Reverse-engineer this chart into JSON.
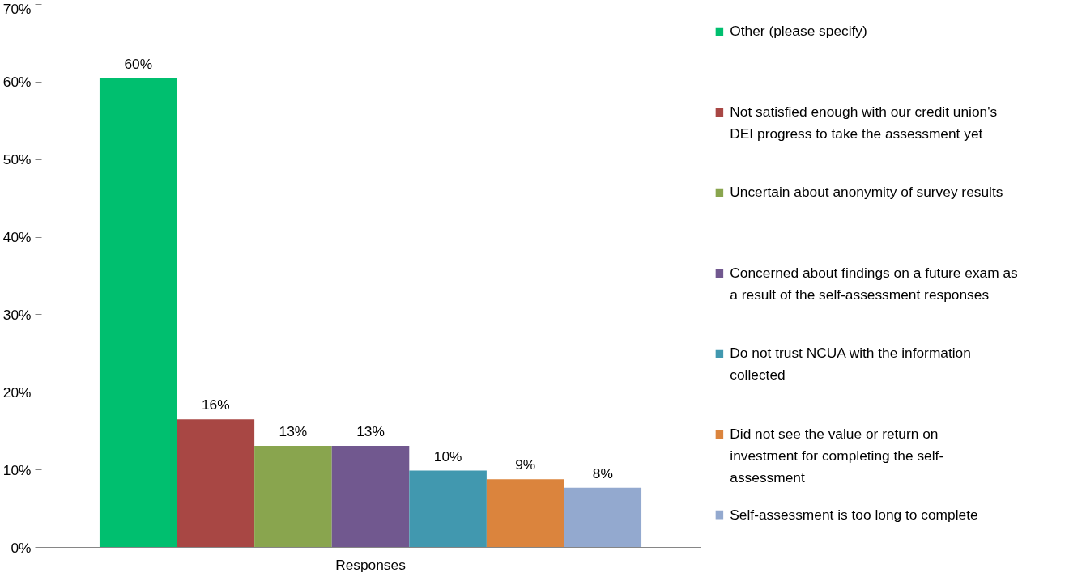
{
  "chart_data": {
    "type": "bar",
    "categories": [
      "Responses"
    ],
    "series": [
      {
        "name": "Other (please specify)",
        "color": "#00bf6f",
        "values": [
          60.5
        ],
        "value_labels": [
          "60%"
        ]
      },
      {
        "name": "Not satisfied enough with our credit union's DEI progress to take the assessment yet",
        "color": "#a84744",
        "values": [
          16.5
        ],
        "value_labels": [
          "16%"
        ]
      },
      {
        "name": "Uncertain about anonymity of survey results",
        "color": "#89a54e",
        "values": [
          13.1
        ],
        "value_labels": [
          "13%"
        ]
      },
      {
        "name": "Concerned about findings on a future exam as a result of the self-assessment responses",
        "color": "#71588f",
        "values": [
          13.1
        ],
        "value_labels": [
          "13%"
        ]
      },
      {
        "name": "Do not trust NCUA with the information collected",
        "color": "#4198af",
        "values": [
          9.9
        ],
        "value_labels": [
          "10%"
        ]
      },
      {
        "name": "Did not see the value or return on investment for completing the self-assessment",
        "color": "#db843d",
        "values": [
          8.8
        ],
        "value_labels": [
          "9%"
        ]
      },
      {
        "name": "Self-assessment is too long to complete",
        "color": "#93a9cf",
        "values": [
          7.7
        ],
        "value_labels": [
          "8%"
        ]
      }
    ],
    "ylim": [
      0,
      70
    ],
    "yticks": [
      {
        "value": 0,
        "label": "0%"
      },
      {
        "value": 10,
        "label": "10%"
      },
      {
        "value": 20,
        "label": "20%"
      },
      {
        "value": 30,
        "label": "30%"
      },
      {
        "value": 40,
        "label": "40%"
      },
      {
        "value": 50,
        "label": "50%"
      },
      {
        "value": 60,
        "label": "60%"
      },
      {
        "value": 70,
        "label": "70%"
      }
    ],
    "grid": false,
    "legend": "right"
  }
}
